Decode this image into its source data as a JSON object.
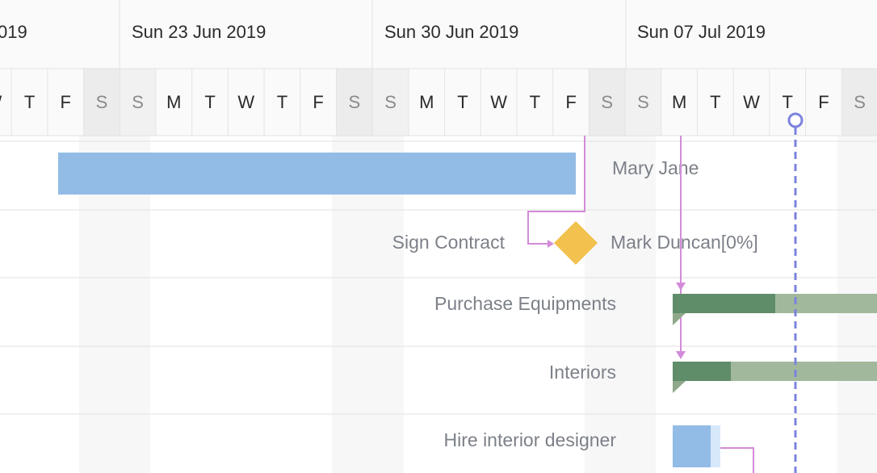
{
  "header": {
    "weeks": [
      "019",
      "Sun 23 Jun 2019",
      "Sun 30 Jun 2019",
      "Sun 07 Jul 2019"
    ],
    "days": [
      "W",
      "T",
      "F",
      "S",
      "S",
      "M",
      "T",
      "W",
      "T",
      "F",
      "S",
      "S",
      "M",
      "T",
      "W",
      "T",
      "F",
      "S",
      "S",
      "M",
      "T",
      "W",
      "T",
      "F",
      "S"
    ]
  },
  "tasks": [
    {
      "resource": "Mary Jane"
    },
    {
      "name": "Sign Contract",
      "resource": "Mark Duncan[0%]"
    },
    {
      "name": "Purchase Equipments"
    },
    {
      "name": "Interiors"
    },
    {
      "name": "Hire interior designer"
    }
  ]
}
